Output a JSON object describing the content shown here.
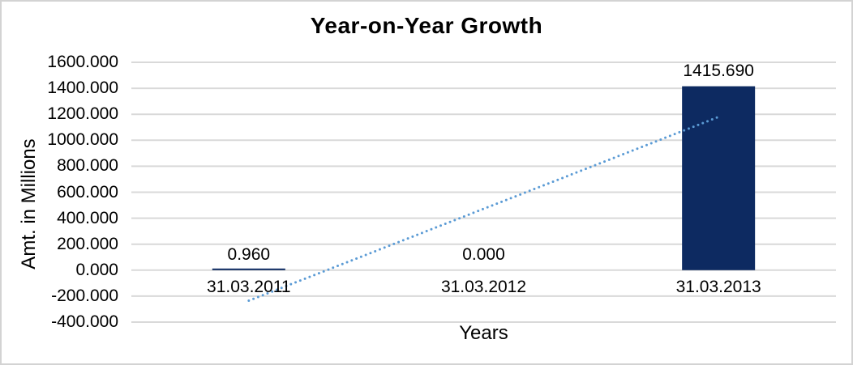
{
  "chart_data": {
    "type": "bar",
    "title": "Year-on-Year Growth",
    "xlabel": "Years",
    "ylabel": "Amt. in Millions",
    "categories": [
      "31.03.2011",
      "31.03.2012",
      "31.03.2013"
    ],
    "values": [
      0.96,
      0.0,
      1415.69
    ],
    "data_labels": [
      "0.960",
      "0.000",
      "1415.690"
    ],
    "y_ticks": [
      {
        "v": 1600,
        "label": "1600.000"
      },
      {
        "v": 1400,
        "label": "1400.000"
      },
      {
        "v": 1200,
        "label": "1200.000"
      },
      {
        "v": 1000,
        "label": "1000.000"
      },
      {
        "v": 800,
        "label": "800.000"
      },
      {
        "v": 600,
        "label": "600.000"
      },
      {
        "v": 400,
        "label": "400.000"
      },
      {
        "v": 200,
        "label": "200.000"
      },
      {
        "v": 0,
        "label": "0.000"
      },
      {
        "v": -200,
        "label": "-200.000"
      },
      {
        "v": -400,
        "label": "-400.000"
      }
    ],
    "ylim": [
      -400,
      1600
    ],
    "grid": true,
    "legend": "none",
    "trendline": {
      "type": "linear",
      "style": "dotted",
      "from_category_index": 0,
      "from_value": -235.1,
      "to_category_index": 2,
      "to_value": 1179.6
    },
    "colors": {
      "bar": "#0D2A61",
      "gridline": "#D9D9D9",
      "trendline": "#5B9BD5",
      "text": "#000000",
      "frame_border": "#D3D3D3"
    }
  }
}
